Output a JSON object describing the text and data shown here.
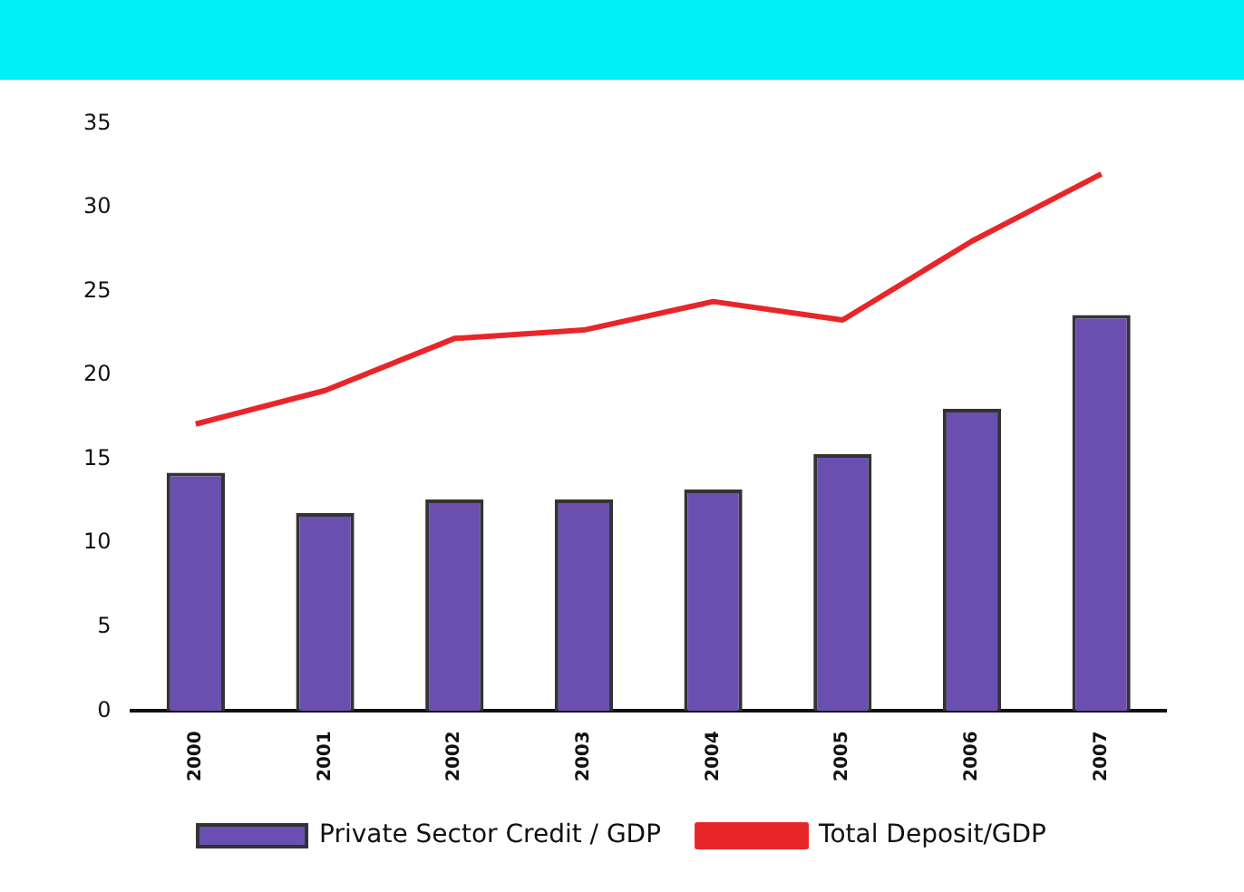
{
  "chart_data": {
    "type": "bar",
    "categories": [
      "2000",
      "2001",
      "2002",
      "2003",
      "2004",
      "2005",
      "2006",
      "2007"
    ],
    "series": [
      {
        "name": "Private Sector Credit / GDP",
        "color": "#6a4fb0",
        "values": [
          14.2,
          11.8,
          12.6,
          12.6,
          13.2,
          15.3,
          18.0,
          23.6
        ]
      },
      {
        "name": "Total Deposit/GDP",
        "type": "line",
        "color": "#e8262a",
        "values": [
          17.1,
          19.1,
          22.2,
          22.7,
          24.4,
          23.3,
          28.0,
          32.0
        ]
      }
    ],
    "ylim": [
      0,
      35
    ],
    "yticks": [
      0,
      5,
      10,
      15,
      20,
      25,
      30,
      35
    ],
    "grid": false,
    "legend": "bottom",
    "marker": "none"
  }
}
